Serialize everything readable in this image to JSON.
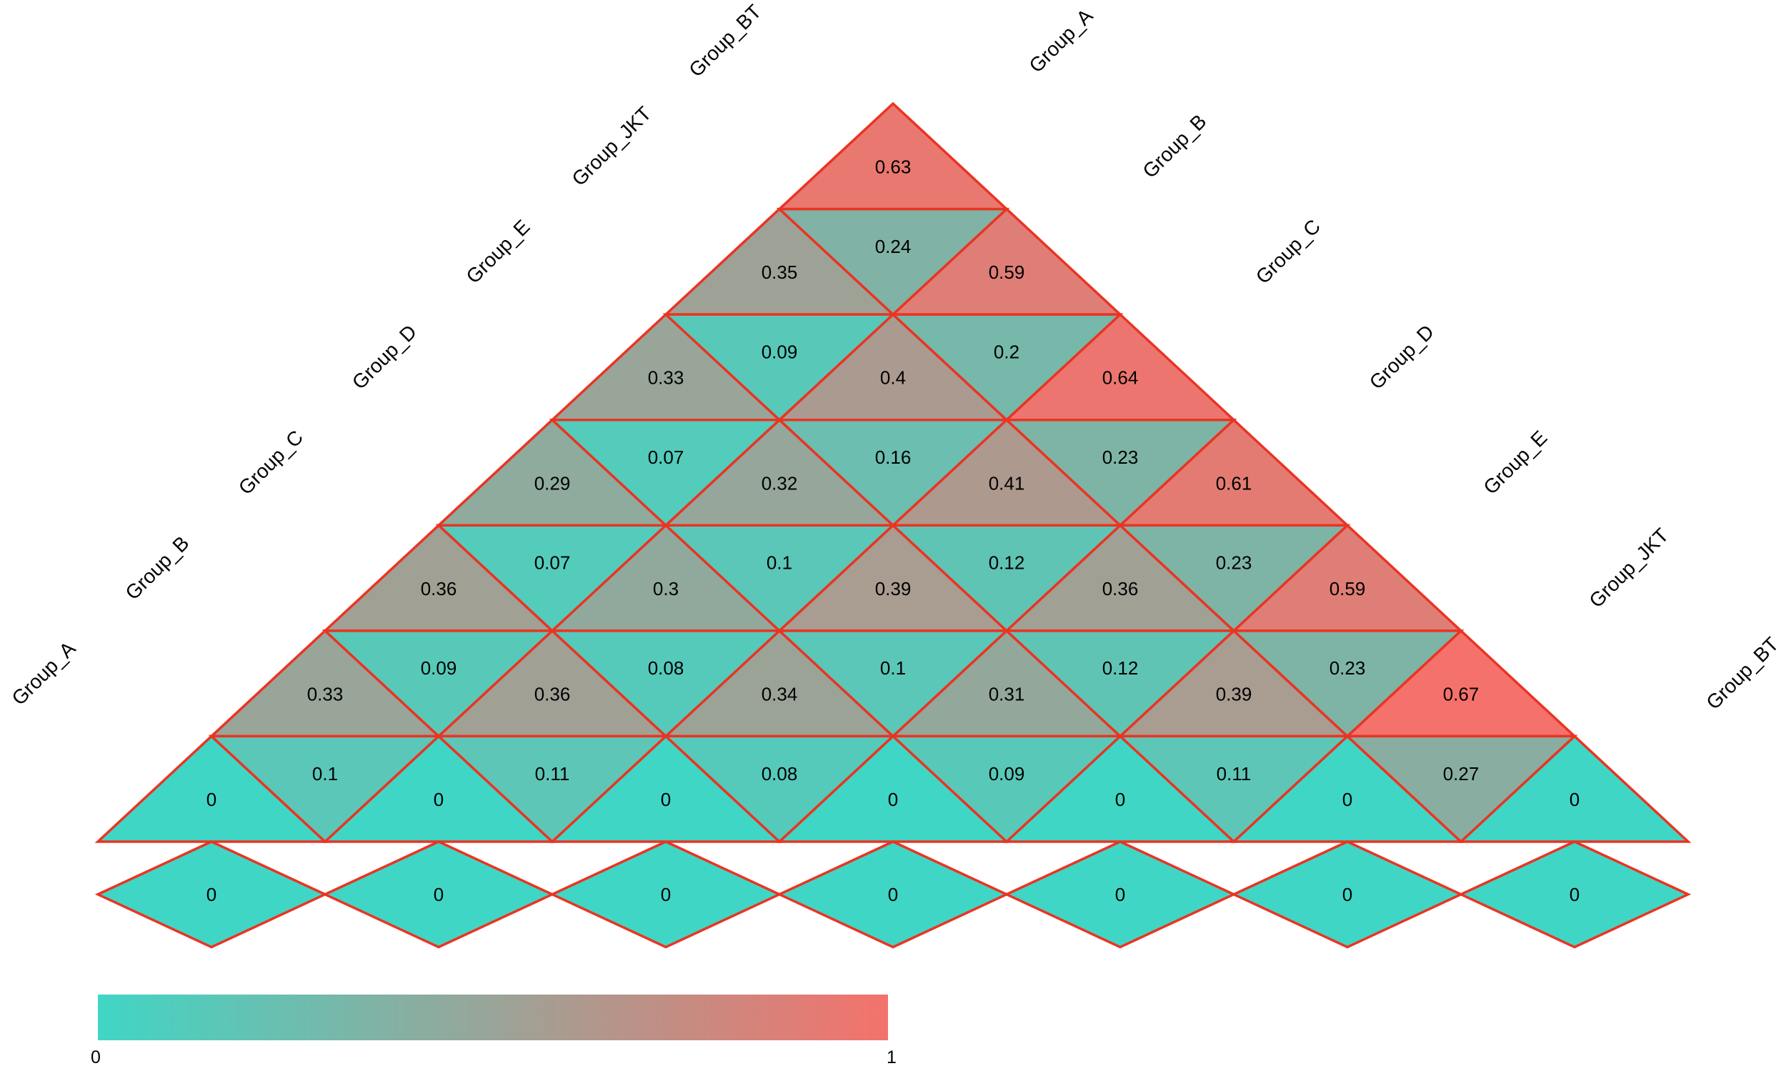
{
  "chart_data": {
    "type": "heatmap",
    "variant": "rotated-triangle-pairwise-matrix",
    "title": "",
    "left_axis_labels_top_to_bottom": [
      "Group_BT",
      "Group_JKT",
      "Group_E",
      "Group_D",
      "Group_C",
      "Group_B",
      "Group_A"
    ],
    "right_axis_labels_top_to_bottom": [
      "Group_A",
      "Group_B",
      "Group_C",
      "Group_D",
      "Group_E",
      "Group_JKT",
      "Group_BT"
    ],
    "rows": [
      {
        "up": [
          "0.63"
        ],
        "down": []
      },
      {
        "up": [
          "0.35",
          "0.59"
        ],
        "down": [
          "0.24"
        ]
      },
      {
        "up": [
          "0.33",
          "0.4",
          "0.64"
        ],
        "down": [
          "0.09",
          "0.2"
        ]
      },
      {
        "up": [
          "0.29",
          "0.32",
          "0.41",
          "0.61"
        ],
        "down": [
          "0.07",
          "0.16",
          "0.23"
        ]
      },
      {
        "up": [
          "0.36",
          "0.3",
          "0.39",
          "0.36",
          "0.59"
        ],
        "down": [
          "0.07",
          "0.1",
          "0.12",
          "0.23"
        ]
      },
      {
        "up": [
          "0.33",
          "0.36",
          "0.34",
          "0.31",
          "0.39",
          "0.67"
        ],
        "down": [
          "0.09",
          "0.08",
          "0.1",
          "0.12",
          "0.23"
        ]
      },
      {
        "up": [
          "0",
          "0",
          "0",
          "0",
          "0",
          "0",
          "0"
        ],
        "down": [
          "0.1",
          "0.11",
          "0.08",
          "0.09",
          "0.11",
          "0.27"
        ]
      }
    ],
    "diagonal_diamonds": [
      "0",
      "0",
      "0",
      "0",
      "0",
      "0",
      "0"
    ],
    "colorbar": {
      "min_label": "0",
      "max_label": "1",
      "min_color": "#40d6c5",
      "max_color": "#f4726b"
    },
    "grid_color": "#ea3423",
    "text_color": "#000000",
    "background_color": "#ffffff"
  }
}
